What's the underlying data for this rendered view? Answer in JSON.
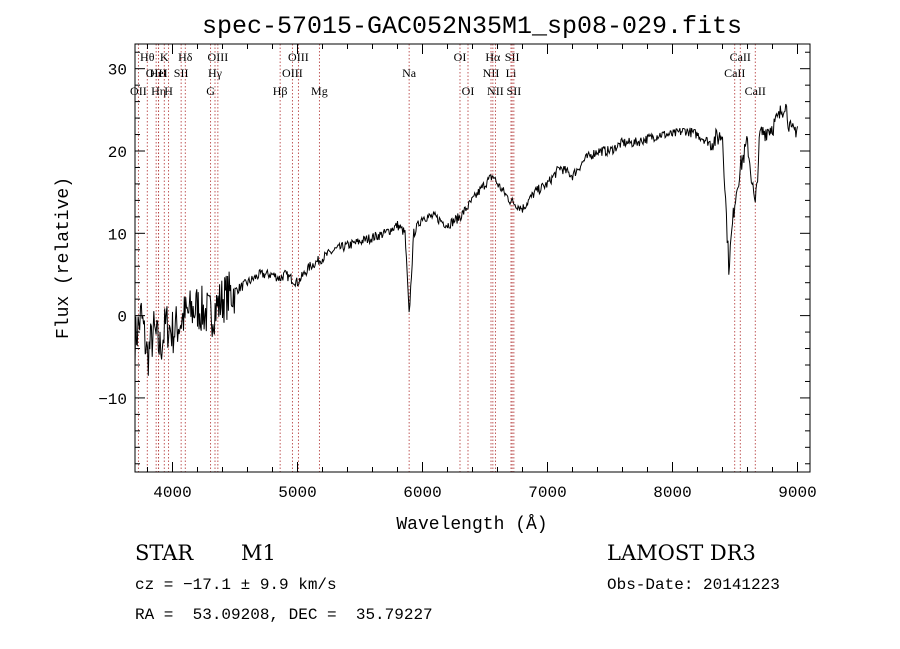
{
  "chart_data": {
    "type": "line",
    "title": "spec-57015-GAC052N35M1_sp08-029.fits",
    "xlabel": "Wavelength (Å)",
    "ylabel": "Flux (relative)",
    "xlim": [
      3700,
      9100
    ],
    "ylim": [
      -19,
      33
    ],
    "grid": false,
    "xticks": [
      4000,
      5000,
      6000,
      7000,
      8000,
      9000
    ],
    "yticks": [
      -10,
      0,
      10,
      20,
      30
    ],
    "xtick_labels": [
      "4000",
      "5000",
      "6000",
      "7000",
      "8000",
      "9000"
    ],
    "ytick_labels": [
      "−10",
      "0",
      "10",
      "20",
      "30"
    ],
    "series": [
      {
        "x": [
          3700,
          3750,
          3800,
          3850,
          3900,
          3950,
          4000,
          4100,
          4200,
          4300,
          4400,
          4500,
          4600,
          4700,
          4800,
          4861,
          4900,
          5000,
          5100,
          5200,
          5300,
          5400,
          5500,
          5600,
          5700,
          5800,
          5860,
          5893,
          5930,
          6000,
          6100,
          6200,
          6300,
          6400,
          6500,
          6563,
          6600,
          6700,
          6800,
          6900,
          7000,
          7100,
          7200,
          7300,
          7400,
          7500,
          7600,
          7700,
          7800,
          7900,
          8000,
          8100,
          8200,
          8300,
          8400,
          8450,
          8498,
          8542,
          8600,
          8662,
          8700,
          8800,
          8850,
          8900,
          8950,
          9000
        ],
        "y": [
          -3,
          0,
          -5,
          -2,
          -4,
          -1,
          -2,
          0,
          1,
          0,
          2,
          3,
          4,
          5,
          5,
          4.5,
          5,
          4,
          6,
          7,
          8,
          8.5,
          9,
          9.5,
          10,
          11,
          10,
          0,
          10,
          12,
          12,
          11,
          12,
          14,
          16,
          17,
          16,
          14,
          13,
          15,
          16,
          18,
          17,
          19,
          20,
          20,
          21,
          21,
          21.5,
          22,
          22,
          22.5,
          22,
          21,
          22,
          6,
          14,
          18,
          21,
          13,
          22,
          23,
          24,
          26,
          22,
          23
        ]
      }
    ],
    "line_markers": [
      {
        "label": "OII",
        "x": 3727,
        "row": 3
      },
      {
        "label": "Hθ",
        "x": 3798,
        "row": 1
      },
      {
        "label": "OIII",
        "x": 3869,
        "row": 2
      },
      {
        "label": "HeI",
        "x": 3889,
        "row": 2
      },
      {
        "label": "Hη",
        "x": 3889,
        "row": 3
      },
      {
        "label": "K",
        "x": 3934,
        "row": 1
      },
      {
        "label": "H",
        "x": 3969,
        "row": 3
      },
      {
        "label": "SII",
        "x": 4069,
        "row": 2
      },
      {
        "label": "Hδ",
        "x": 4102,
        "row": 1
      },
      {
        "label": "G",
        "x": 4305,
        "row": 3
      },
      {
        "label": "Hγ",
        "x": 4340,
        "row": 2
      },
      {
        "label": "OIII",
        "x": 4363,
        "row": 1
      },
      {
        "label": "Hβ",
        "x": 4861,
        "row": 3
      },
      {
        "label": "OIII",
        "x": 4959,
        "row": 2
      },
      {
        "label": "OIII",
        "x": 5007,
        "row": 1
      },
      {
        "label": "Mg",
        "x": 5175,
        "row": 3
      },
      {
        "label": "Na",
        "x": 5893,
        "row": 2
      },
      {
        "label": "OI",
        "x": 6300,
        "row": 1
      },
      {
        "label": "OI",
        "x": 6364,
        "row": 3
      },
      {
        "label": "NII",
        "x": 6548,
        "row": 2
      },
      {
        "label": "Hα",
        "x": 6563,
        "row": 1
      },
      {
        "label": "NII",
        "x": 6583,
        "row": 3
      },
      {
        "label": "Li",
        "x": 6708,
        "row": 2
      },
      {
        "label": "SII",
        "x": 6717,
        "row": 1
      },
      {
        "label": "SII",
        "x": 6731,
        "row": 3
      },
      {
        "label": "CaII",
        "x": 8498,
        "row": 2
      },
      {
        "label": "CaII",
        "x": 8542,
        "row": 1
      },
      {
        "label": "CaII",
        "x": 8662,
        "row": 3
      }
    ],
    "line_color": "#000000",
    "marker_color": "#b03030"
  },
  "info": {
    "class": "STAR",
    "subclass": "M1",
    "survey": "LAMOST DR3",
    "cz": "cz = −17.1 ± 9.9 km/s",
    "obs_date": "Obs-Date: 20141223",
    "radec": "RA =  53.09208, DEC =  35.79227"
  }
}
